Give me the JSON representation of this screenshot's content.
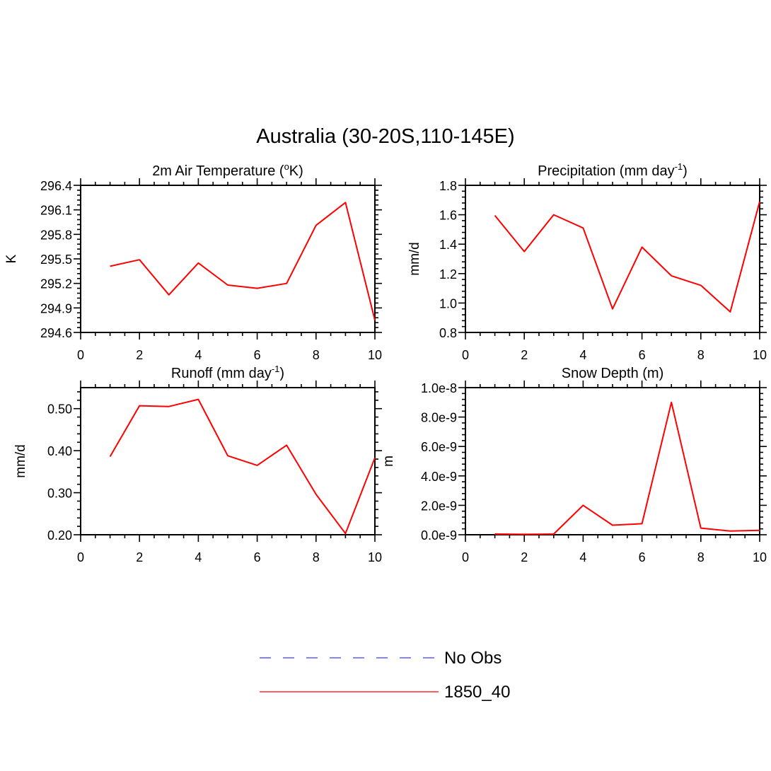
{
  "figure": {
    "title": "Australia (30-20S,110-145E)"
  },
  "chart_data": [
    {
      "type": "line",
      "title_main": "2m Air Temperature (",
      "title_sup": "o",
      "title_end": "K)",
      "xlabel": "",
      "ylabel": "K",
      "xlim": [
        0,
        10
      ],
      "ylim": [
        294.6,
        296.4
      ],
      "x_ticks": [
        0,
        2,
        4,
        6,
        8,
        10
      ],
      "x_tick_labels": [
        "0",
        "2",
        "4",
        "6",
        "8",
        "10"
      ],
      "y_ticks": [
        294.6,
        294.9,
        295.2,
        295.5,
        295.8,
        296.1,
        296.4
      ],
      "y_tick_labels": [
        "294.6",
        "294.9",
        "295.2",
        "295.5",
        "295.8",
        "296.1",
        "296.4"
      ],
      "series": [
        {
          "name": "1850_40",
          "color": "#ff0000",
          "x": [
            1,
            2,
            3,
            4,
            5,
            6,
            7,
            8,
            9,
            10
          ],
          "y": [
            295.41,
            295.49,
            295.06,
            295.45,
            295.18,
            295.14,
            295.2,
            295.91,
            296.19,
            294.75
          ]
        }
      ]
    },
    {
      "type": "line",
      "title_main": "Precipitation (mm day",
      "title_sup": "-1",
      "title_end": ")",
      "xlabel": "",
      "ylabel": "mm/d",
      "xlim": [
        0,
        10
      ],
      "ylim": [
        0.8,
        1.8
      ],
      "x_ticks": [
        0,
        2,
        4,
        6,
        8,
        10
      ],
      "x_tick_labels": [
        "0",
        "2",
        "4",
        "6",
        "8",
        "10"
      ],
      "y_ticks": [
        0.8,
        1.0,
        1.2,
        1.4,
        1.6,
        1.8
      ],
      "y_tick_labels": [
        "0.8",
        "1.0",
        "1.2",
        "1.4",
        "1.6",
        "1.8"
      ],
      "series": [
        {
          "name": "1850_40",
          "color": "#ff0000",
          "x": [
            1,
            2,
            3,
            4,
            5,
            6,
            7,
            8,
            9,
            10
          ],
          "y": [
            1.595,
            1.35,
            1.6,
            1.51,
            0.96,
            1.38,
            1.185,
            1.12,
            0.94,
            1.69
          ]
        }
      ]
    },
    {
      "type": "line",
      "title_main": "Runoff (mm day",
      "title_sup": "-1",
      "title_end": ")",
      "xlabel": "",
      "ylabel": "mm/d",
      "xlim": [
        0,
        10
      ],
      "ylim": [
        0.2,
        0.55
      ],
      "x_ticks": [
        0,
        2,
        4,
        6,
        8,
        10
      ],
      "x_tick_labels": [
        "0",
        "2",
        "4",
        "6",
        "8",
        "10"
      ],
      "y_ticks": [
        0.2,
        0.3,
        0.4,
        0.5
      ],
      "y_tick_labels": [
        "0.20",
        "0.30",
        "0.40",
        "0.50"
      ],
      "series": [
        {
          "name": "1850_40",
          "color": "#ff0000",
          "x": [
            1,
            2,
            3,
            4,
            5,
            6,
            7,
            8,
            9,
            10
          ],
          "y": [
            0.386,
            0.507,
            0.505,
            0.522,
            0.388,
            0.365,
            0.413,
            0.296,
            0.203,
            0.383
          ]
        }
      ]
    },
    {
      "type": "line",
      "title_main": "Snow Depth (m)",
      "title_sup": "",
      "title_end": "",
      "xlabel": "",
      "ylabel": "m",
      "xlim": [
        0,
        10
      ],
      "ylim": [
        0,
        1e-08
      ],
      "x_ticks": [
        0,
        2,
        4,
        6,
        8,
        10
      ],
      "x_tick_labels": [
        "0",
        "2",
        "4",
        "6",
        "8",
        "10"
      ],
      "y_ticks": [
        0,
        2e-09,
        4e-09,
        6e-09,
        8e-09,
        1e-08
      ],
      "y_tick_labels": [
        "0.0e-9",
        "2.0e-9",
        "4.0e-9",
        "6.0e-9",
        "8.0e-9",
        "1.0e-8"
      ],
      "series": [
        {
          "name": "1850_40",
          "color": "#ff0000",
          "x": [
            1,
            2,
            3,
            4,
            5,
            6,
            7,
            8,
            9,
            10
          ],
          "y": [
            5e-11,
            3e-11,
            5e-11,
            2e-09,
            6.5e-10,
            7.5e-10,
            9e-09,
            4.5e-10,
            2.5e-10,
            3e-10
          ]
        }
      ]
    }
  ],
  "legend": {
    "placement": "bottom-center",
    "items": [
      {
        "label": "No Obs",
        "color": "#3c3cff",
        "style": "dashed"
      },
      {
        "label": "1850_40",
        "color": "#ff0000",
        "style": "solid"
      }
    ]
  }
}
